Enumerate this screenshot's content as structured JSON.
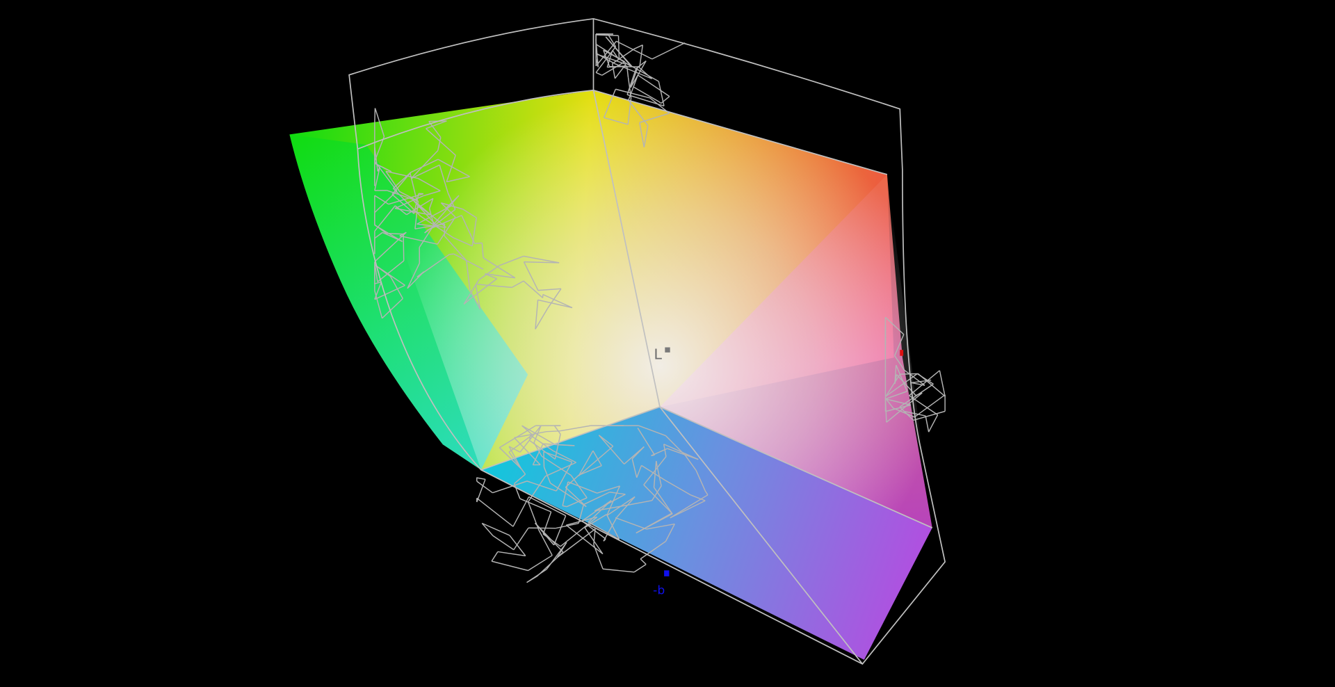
{
  "viewer": {
    "background": "#000000",
    "wireframe_color": "#b4b4b4",
    "axes": {
      "L": {
        "label": "L",
        "color": "#6e6e6e"
      },
      "b": {
        "label": "-b",
        "color": "#1010ee"
      },
      "a": {
        "label": "",
        "color": "#dd1010"
      }
    },
    "gamut_colors": {
      "green": "#10dc10",
      "yellow": "#e6e000",
      "red": "#ec5a40",
      "magenta": "#dc50dc",
      "blue": "#9050e0",
      "cyan": "#10dce0",
      "white": "#eeeeee"
    }
  }
}
